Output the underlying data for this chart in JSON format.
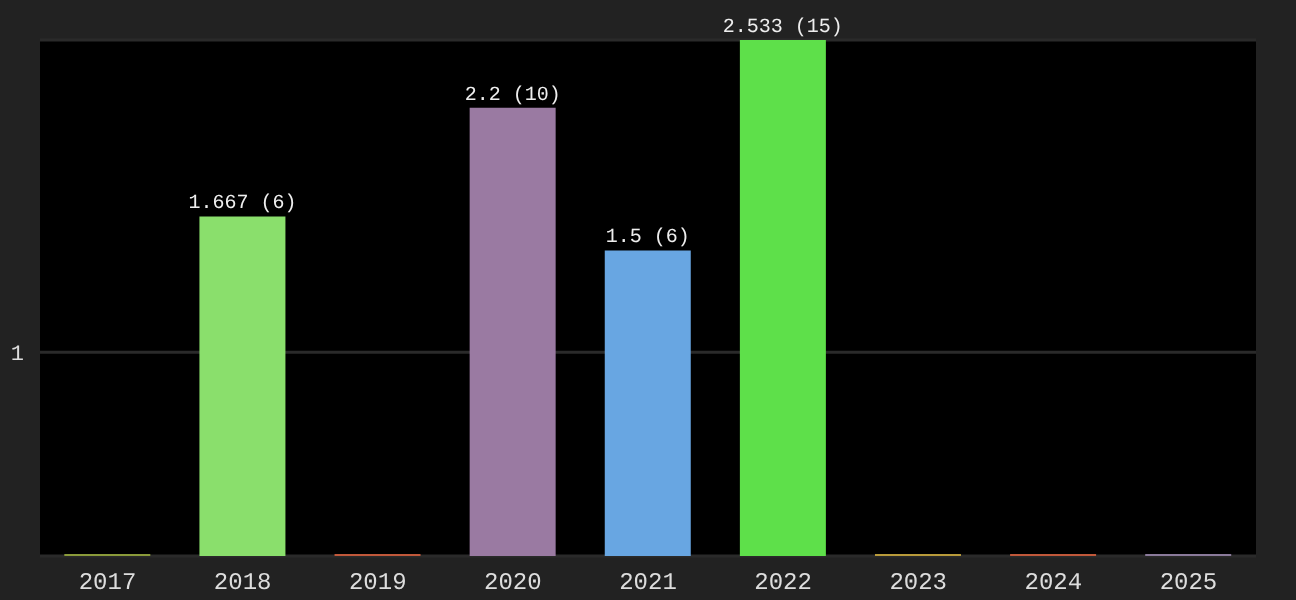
{
  "chart_data": {
    "type": "bar",
    "categories": [
      "2017",
      "2018",
      "2019",
      "2020",
      "2021",
      "2022",
      "2023",
      "2024",
      "2025"
    ],
    "values": [
      0,
      1.667,
      0,
      2.2,
      1.5,
      2.533,
      0,
      0,
      0
    ],
    "value_labels": [
      null,
      "1.667 (6)",
      null,
      "2.2 (10)",
      "1.5 (6)",
      "2.533 (15)",
      null,
      null,
      null
    ],
    "colors": [
      "#8a9a3a",
      "#8adf6c",
      "#c0583a",
      "#9a7aa2",
      "#68a6e2",
      "#5ee04a",
      "#b89a3a",
      "#c0583a",
      "#8a7a9a"
    ],
    "ylim": [
      0,
      2.533
    ],
    "yticks": [
      1
    ],
    "grid": "y"
  }
}
